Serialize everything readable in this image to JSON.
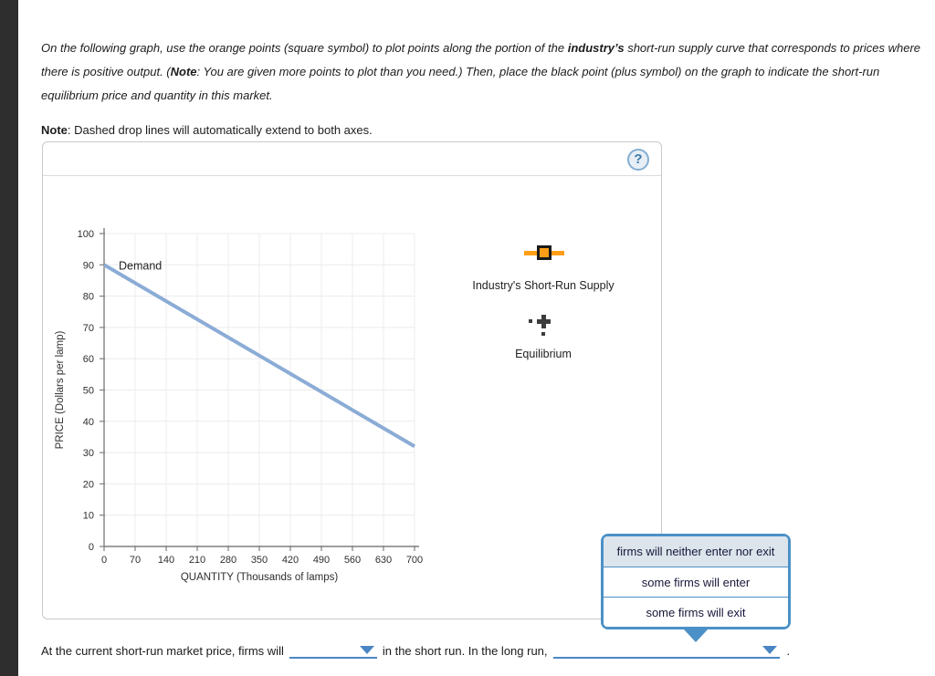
{
  "instructions": {
    "seg1": "On the following graph, use the orange points (square symbol) to plot points along the portion of the ",
    "seg2": "industry’s",
    "seg3": " short-run supply curve that corresponds to prices where there is positive output. (",
    "seg4": "Note",
    "seg5": ": You are given more points to plot than you need.) Then, place the black point (plus symbol) on the graph to indicate the short-run equilibrium price and quantity in this market."
  },
  "note": {
    "bold": "Note",
    "rest": ": Dashed drop lines will automatically extend to both axes."
  },
  "panel": {
    "help_label": "?"
  },
  "chart_data": {
    "type": "line",
    "title": "",
    "xlabel": "QUANTITY (Thousands of lamps)",
    "ylabel": "PRICE (Dollars per lamp)",
    "xlim": [
      0,
      700
    ],
    "ylim": [
      0,
      100
    ],
    "x_ticks": [
      0,
      70,
      140,
      210,
      280,
      350,
      420,
      490,
      560,
      630,
      700
    ],
    "y_ticks": [
      0,
      10,
      20,
      30,
      40,
      50,
      60,
      70,
      80,
      90,
      100
    ],
    "grid": true,
    "legend_position": "right-panel",
    "series": [
      {
        "name": "Demand",
        "color": "#8BACD5",
        "points": [
          [
            0,
            90
          ],
          [
            700,
            32
          ]
        ],
        "label_pos": [
          33,
          88.5
        ]
      }
    ]
  },
  "tools": {
    "supply": {
      "label": "Industry's Short-Run Supply",
      "color": "#FF9E16"
    },
    "equilibrium": {
      "label": "Equilibrium",
      "color": "#3c3c3c"
    }
  },
  "popup": {
    "options": [
      "firms will neither enter nor exit",
      "some firms will enter",
      "some firms will exit"
    ],
    "selected": "firms will neither enter nor exit",
    "border_color": "#4b90c6",
    "selected_bg": "#dde5ec"
  },
  "question": {
    "part1": "At the current short-run market price, firms will",
    "part2": "in the short run. In the long run,",
    "period": "."
  },
  "colors": {
    "sidebar": "#2e2e2e",
    "demand_line": "#8BACD5",
    "supply_orange": "#FF9E16",
    "dropdown_blue": "#4a86c4",
    "popup_blue": "#4b90c6"
  }
}
